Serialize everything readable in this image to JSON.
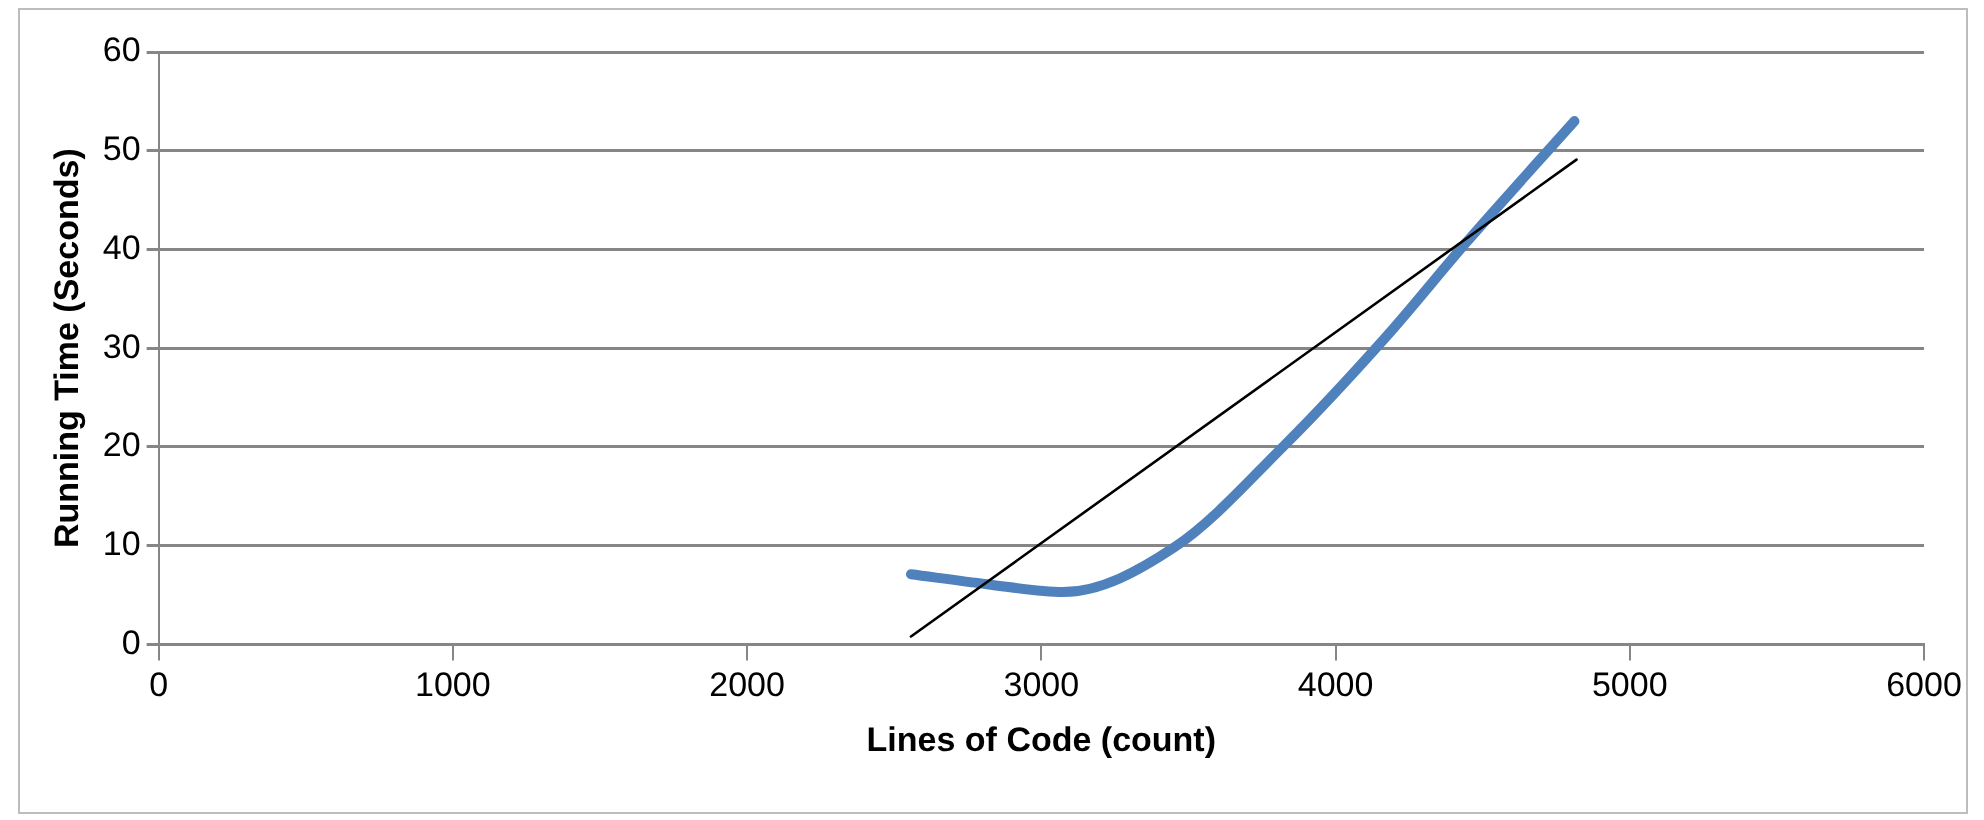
{
  "chart_data": {
    "type": "line",
    "xlabel": "Lines of Code (count)",
    "ylabel": "Running Time (Seconds)",
    "xlim": [
      0,
      6000
    ],
    "xticks": [
      0,
      1000,
      2000,
      3000,
      4000,
      5000,
      6000
    ],
    "ylim": [
      0,
      60
    ],
    "yticks": [
      0,
      10,
      20,
      30,
      40,
      50,
      60
    ],
    "grid": "y",
    "legend": false,
    "marker": "none",
    "series": [
      {
        "color": "#4f81bd",
        "x": [
          2557,
          2815,
          3074,
          3455,
          3824,
          4170,
          4441,
          4812
        ],
        "values": [
          7.1,
          6.1,
          5.3,
          9.9,
          20.1,
          31.1,
          40.6,
          53.0
        ]
      },
      {
        "type": "line",
        "color": "#000000",
        "x": [
          2557,
          4819
        ],
        "values": [
          0.8,
          49.1
        ]
      }
    ]
  }
}
